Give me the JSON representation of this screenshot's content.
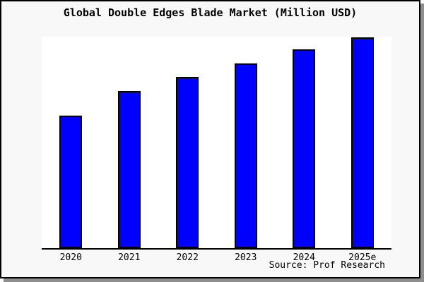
{
  "chart": {
    "title": "Global Double Edges Blade Market (Million USD)",
    "source": "Source: Prof Research"
  },
  "chart_data": {
    "type": "bar",
    "title": "Global Double Edges Blade Market (Million USD)",
    "categories": [
      "2020",
      "2021",
      "2022",
      "2023",
      "2024",
      "2025e"
    ],
    "values": [
      63,
      74.7,
      81.3,
      87.7,
      94.3,
      100
    ],
    "value_scale": "relative percent of 2025e bar; y-axis is unlabeled in the chart",
    "xlabel": "",
    "ylabel": "",
    "ylim": [
      0,
      100.5
    ],
    "grid": false,
    "legend": false,
    "source_note": "Source: Prof Research"
  },
  "colors": {
    "bar_fill": "#0000ff",
    "bar_border": "#000000",
    "frame_bg": "#f8f8f8",
    "plot_bg": "#ffffff",
    "frame_border": "#000000",
    "shadow": "#8e8e8e",
    "text": "#000000"
  }
}
